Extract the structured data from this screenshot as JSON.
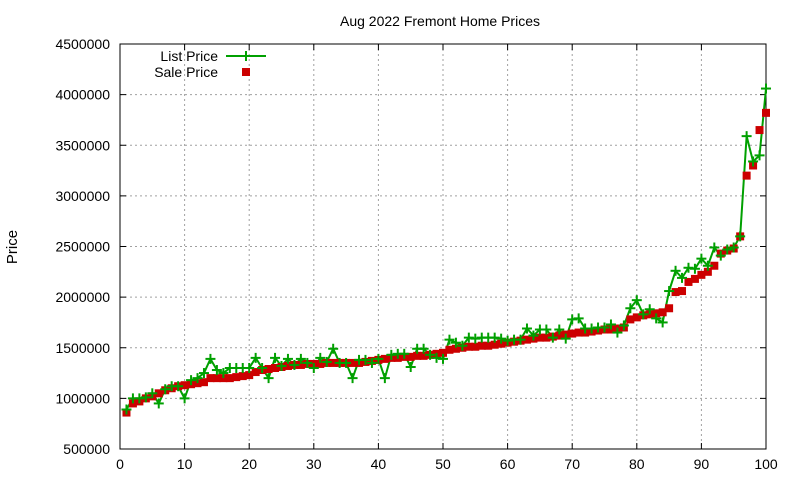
{
  "chart_data": {
    "type": "line",
    "title": "Aug 2022 Fremont Home Prices",
    "xlabel": "",
    "ylabel": "Price",
    "xlim": [
      0,
      100
    ],
    "ylim": [
      500000,
      4500000
    ],
    "x_ticks": [
      "0",
      "10",
      "20",
      "30",
      "40",
      "50",
      "60",
      "70",
      "80",
      "90",
      "100"
    ],
    "y_ticks": [
      "500000",
      "1000000",
      "1500000",
      "2000000",
      "2500000",
      "3000000",
      "3500000",
      "4000000",
      "4500000"
    ],
    "grid": true,
    "legend_position": "top-left",
    "series": [
      {
        "name": "List Price",
        "style": "line-plus",
        "color": "#00a000",
        "x": [
          1,
          2,
          3,
          4,
          5,
          6,
          7,
          8,
          9,
          10,
          11,
          12,
          13,
          14,
          15,
          16,
          17,
          18,
          19,
          20,
          21,
          22,
          23,
          24,
          25,
          26,
          27,
          28,
          29,
          30,
          31,
          32,
          33,
          34,
          35,
          36,
          37,
          38,
          39,
          40,
          41,
          42,
          43,
          44,
          45,
          46,
          47,
          48,
          49,
          50,
          51,
          52,
          53,
          54,
          55,
          56,
          57,
          58,
          59,
          60,
          61,
          62,
          63,
          64,
          65,
          66,
          67,
          68,
          69,
          70,
          71,
          72,
          73,
          74,
          75,
          76,
          77,
          78,
          79,
          80,
          81,
          82,
          83,
          84,
          85,
          86,
          87,
          88,
          89,
          90,
          91,
          92,
          93,
          94,
          95,
          96,
          97,
          98,
          99,
          100
        ],
        "y": [
          890000,
          1000000,
          1000000,
          1010000,
          1050000,
          950000,
          1090000,
          1120000,
          1120000,
          1000000,
          1180000,
          1200000,
          1250000,
          1390000,
          1280000,
          1250000,
          1300000,
          1300000,
          1300000,
          1300000,
          1400000,
          1300000,
          1200000,
          1400000,
          1320000,
          1390000,
          1330000,
          1390000,
          1350000,
          1300000,
          1400000,
          1360000,
          1490000,
          1350000,
          1350000,
          1200000,
          1380000,
          1380000,
          1350000,
          1390000,
          1200000,
          1430000,
          1440000,
          1440000,
          1310000,
          1490000,
          1490000,
          1430000,
          1400000,
          1390000,
          1580000,
          1550000,
          1520000,
          1600000,
          1590000,
          1600000,
          1600000,
          1600000,
          1590000,
          1570000,
          1580000,
          1580000,
          1690000,
          1620000,
          1680000,
          1680000,
          1600000,
          1680000,
          1590000,
          1780000,
          1790000,
          1690000,
          1690000,
          1700000,
          1700000,
          1730000,
          1650000,
          1720000,
          1890000,
          1970000,
          1830000,
          1880000,
          1790000,
          1750000,
          2060000,
          2260000,
          2190000,
          2290000,
          2280000,
          2380000,
          2310000,
          2490000,
          2410000,
          2470000,
          2490000,
          2600000,
          3590000,
          3340000,
          3400000,
          4060000
        ]
      },
      {
        "name": "Sale Price",
        "style": "points-square",
        "color": "#cc0000",
        "x": [
          1,
          2,
          3,
          4,
          5,
          6,
          7,
          8,
          9,
          10,
          11,
          12,
          13,
          14,
          15,
          16,
          17,
          18,
          19,
          20,
          21,
          22,
          23,
          24,
          25,
          26,
          27,
          28,
          29,
          30,
          31,
          32,
          33,
          34,
          35,
          36,
          37,
          38,
          39,
          40,
          41,
          42,
          43,
          44,
          45,
          46,
          47,
          48,
          49,
          50,
          51,
          52,
          53,
          54,
          55,
          56,
          57,
          58,
          59,
          60,
          61,
          62,
          63,
          64,
          65,
          66,
          67,
          68,
          69,
          70,
          71,
          72,
          73,
          74,
          75,
          76,
          77,
          78,
          79,
          80,
          81,
          82,
          83,
          84,
          85,
          86,
          87,
          88,
          89,
          90,
          91,
          92,
          93,
          94,
          95,
          96,
          97,
          98,
          99,
          100
        ],
        "y": [
          860000,
          950000,
          970000,
          1000000,
          1020000,
          1050000,
          1080000,
          1100000,
          1120000,
          1130000,
          1140000,
          1150000,
          1160000,
          1200000,
          1200000,
          1200000,
          1200000,
          1210000,
          1220000,
          1230000,
          1260000,
          1280000,
          1290000,
          1300000,
          1310000,
          1320000,
          1330000,
          1330000,
          1340000,
          1340000,
          1340000,
          1350000,
          1350000,
          1350000,
          1350000,
          1350000,
          1350000,
          1360000,
          1370000,
          1380000,
          1390000,
          1400000,
          1400000,
          1410000,
          1410000,
          1420000,
          1420000,
          1430000,
          1440000,
          1450000,
          1480000,
          1490000,
          1500000,
          1510000,
          1510000,
          1520000,
          1520000,
          1530000,
          1540000,
          1550000,
          1560000,
          1570000,
          1580000,
          1590000,
          1600000,
          1600000,
          1610000,
          1620000,
          1630000,
          1640000,
          1650000,
          1650000,
          1660000,
          1670000,
          1680000,
          1680000,
          1690000,
          1700000,
          1780000,
          1800000,
          1820000,
          1830000,
          1840000,
          1850000,
          1890000,
          2050000,
          2060000,
          2150000,
          2180000,
          2220000,
          2250000,
          2310000,
          2430000,
          2460000,
          2480000,
          2600000,
          3200000,
          3300000,
          3650000,
          3820000
        ]
      }
    ]
  }
}
